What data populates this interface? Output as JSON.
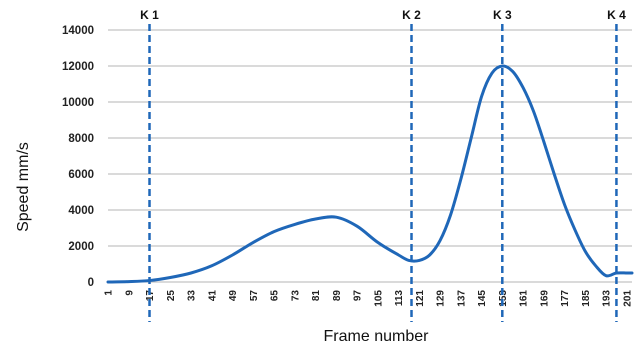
{
  "chart_data": {
    "type": "line",
    "xlabel": "Frame number",
    "ylabel": "Speed mm/s",
    "xlim": [
      1,
      203
    ],
    "ylim": [
      0,
      14000
    ],
    "yticks": [
      0,
      2000,
      4000,
      6000,
      8000,
      10000,
      12000,
      14000
    ],
    "xticks": [
      1,
      9,
      17,
      25,
      33,
      41,
      49,
      57,
      65,
      73,
      81,
      89,
      97,
      105,
      113,
      121,
      129,
      137,
      145,
      153,
      161,
      169,
      177,
      185,
      193,
      201
    ],
    "grid": true,
    "line_color": "#1f67b8",
    "marker_color": "#1f67b8",
    "markers": [
      {
        "label": "K 1",
        "x": 17
      },
      {
        "label": "K 2",
        "x": 118
      },
      {
        "label": "K 3",
        "x": 153
      },
      {
        "label": "K 4",
        "x": 197
      }
    ],
    "series": [
      {
        "x": [
          1,
          9,
          17,
          25,
          33,
          41,
          49,
          57,
          65,
          73,
          81,
          89,
          97,
          105,
          113,
          117,
          121,
          125,
          129,
          133,
          137,
          141,
          145,
          149,
          153,
          157,
          161,
          165,
          169,
          173,
          177,
          181,
          185,
          189,
          193,
          197,
          201,
          203
        ],
        "values": [
          0,
          20,
          80,
          250,
          500,
          900,
          1500,
          2200,
          2800,
          3200,
          3500,
          3600,
          3100,
          2200,
          1500,
          1200,
          1200,
          1500,
          2300,
          3700,
          5700,
          8000,
          10300,
          11600,
          12000,
          11700,
          10800,
          9500,
          7800,
          6000,
          4300,
          2900,
          1700,
          900,
          350,
          500,
          500,
          500
        ]
      }
    ]
  }
}
